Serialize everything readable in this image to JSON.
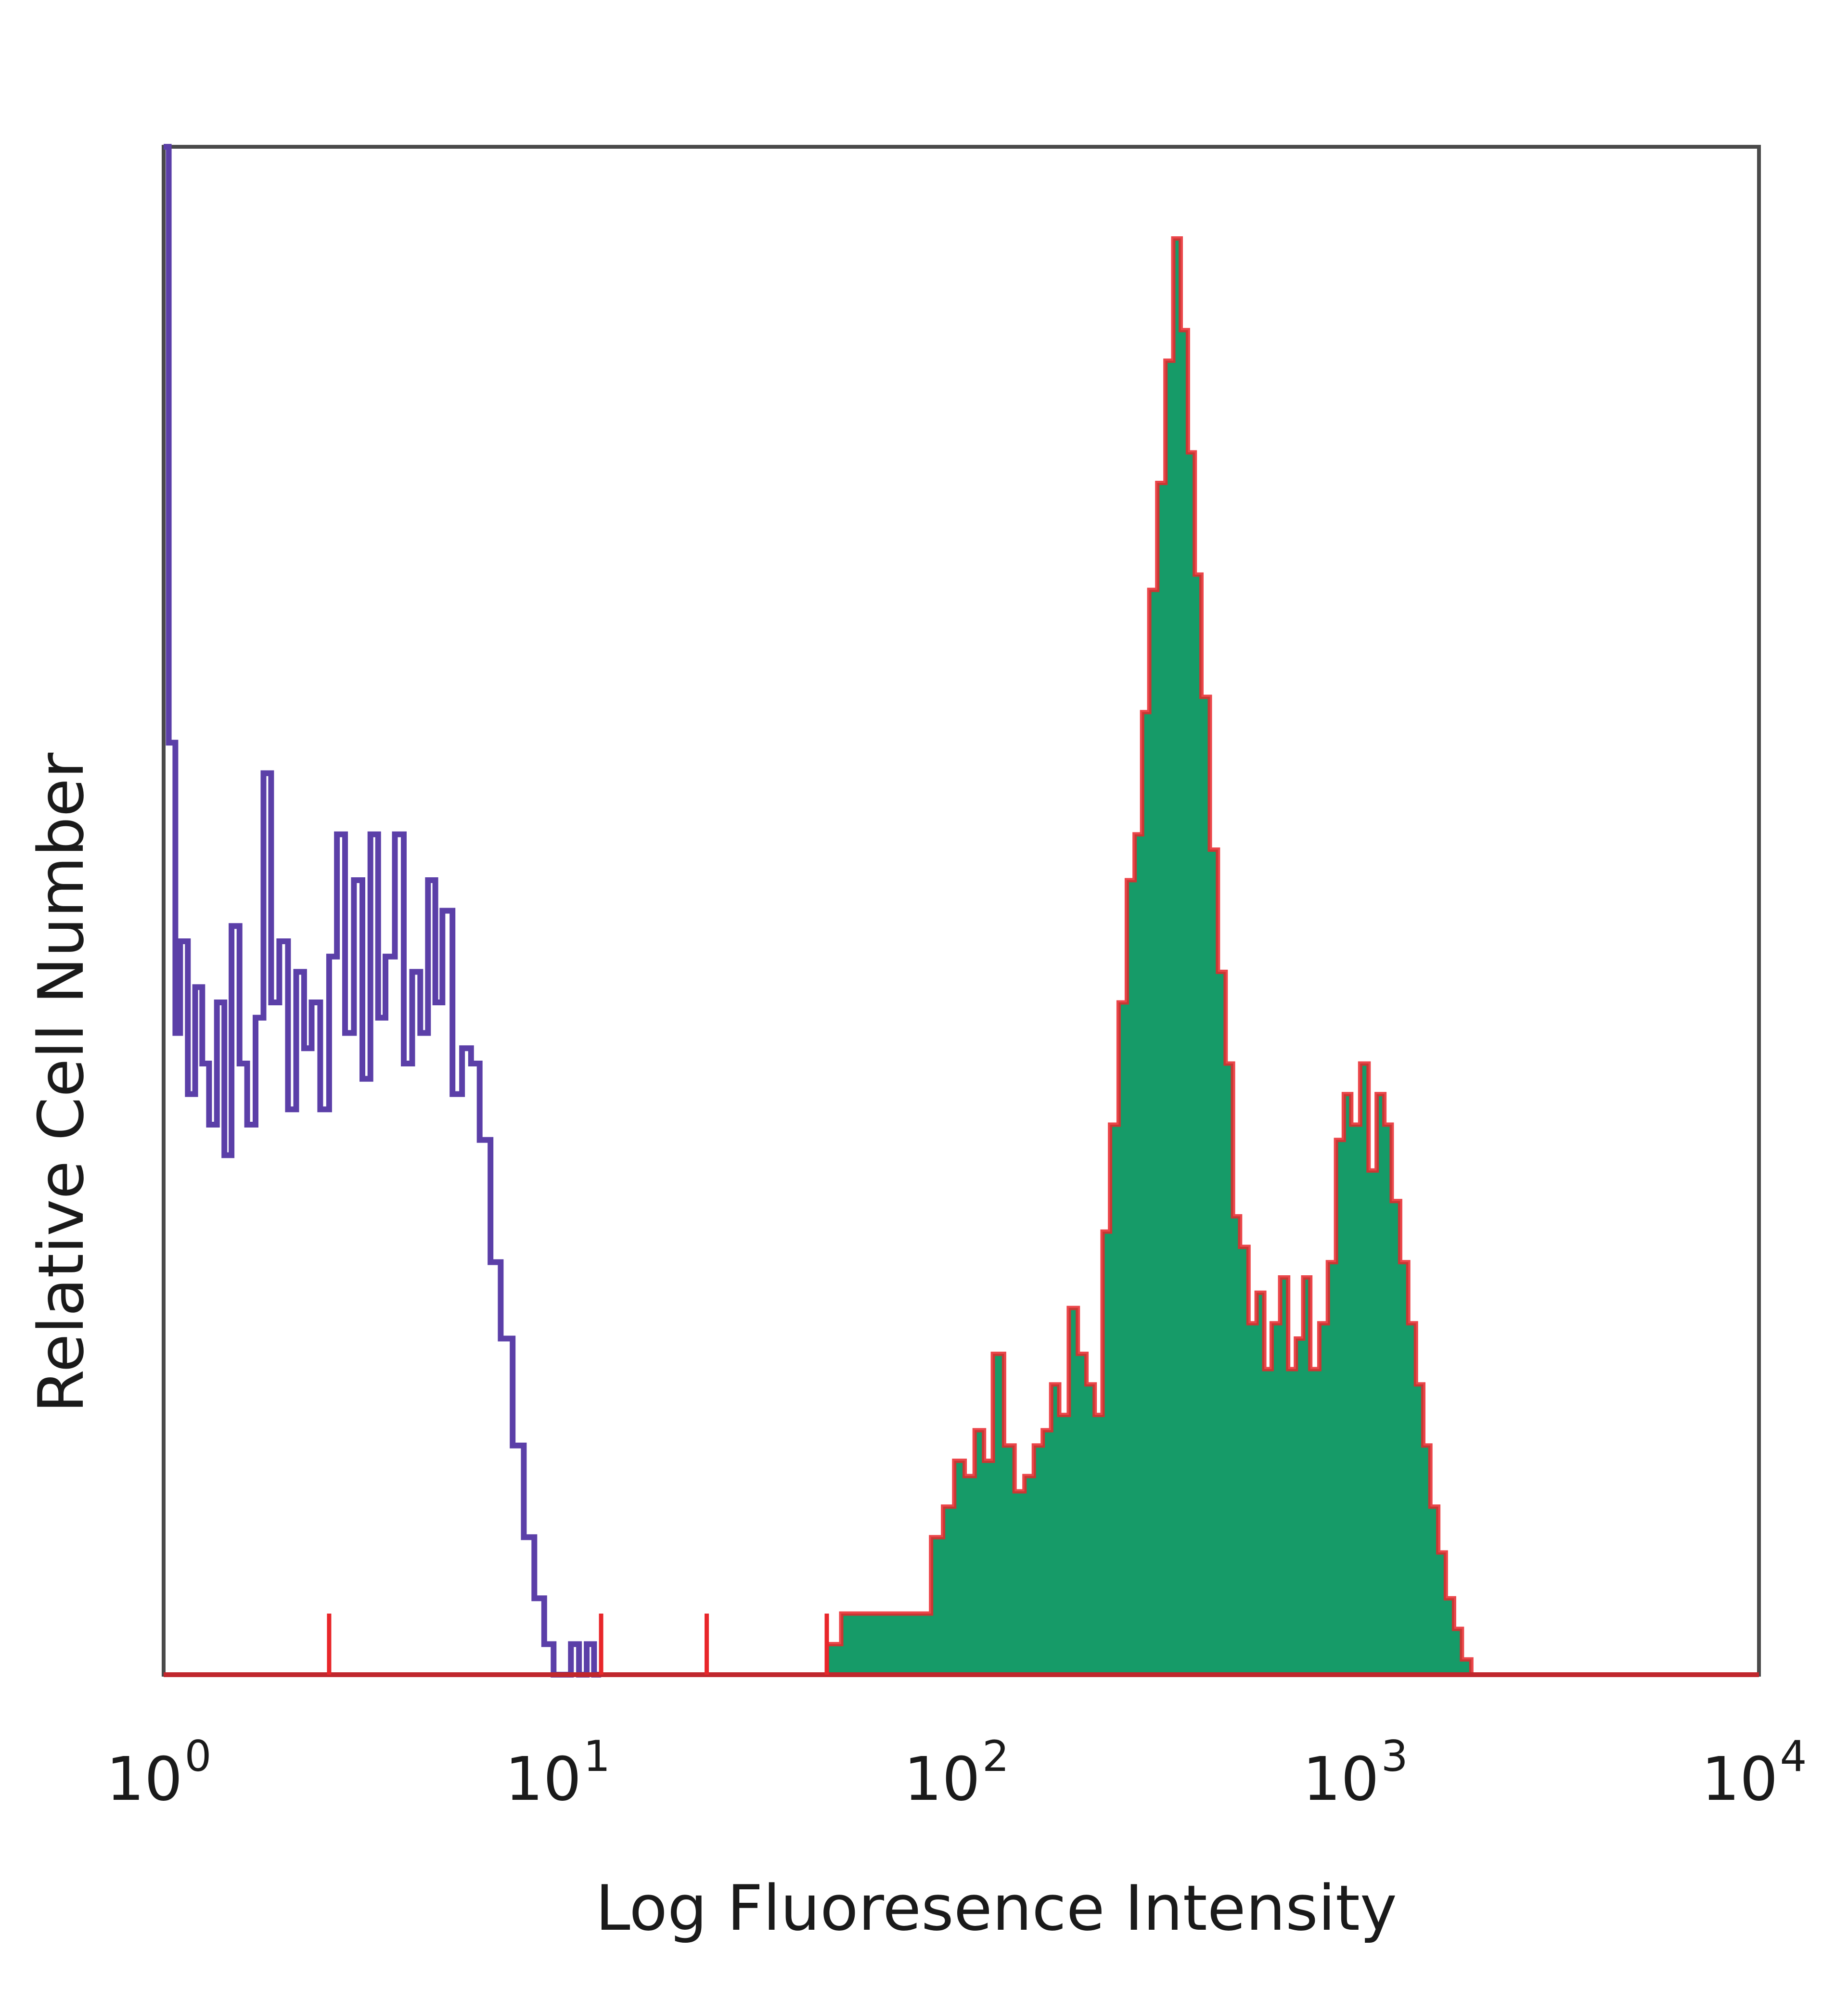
{
  "chart_data": {
    "type": "area",
    "title": "",
    "xlabel": "Log Fluoresence Intensity",
    "ylabel": "Relative Cell Number",
    "xscale": "log",
    "xlim": [
      1,
      10000
    ],
    "ylim": [
      0,
      100
    ],
    "xticks": [
      {
        "base": "10",
        "exp": "0",
        "value": 1
      },
      {
        "base": "10",
        "exp": "1",
        "value": 10
      },
      {
        "base": "10",
        "exp": "2",
        "value": 100
      },
      {
        "base": "10",
        "exp": "3",
        "value": 1000
      },
      {
        "base": "10",
        "exp": "4",
        "value": 10000
      }
    ],
    "grid": false,
    "legend": "none",
    "colors": {
      "frame": "#4a4a4a",
      "control_line": "#5b3fa8",
      "stained_fill": "#169b68",
      "stained_outline": "#e8262a",
      "baseline": "#c0272d"
    },
    "series": [
      {
        "style": "outline",
        "color": "#5b3fa8",
        "x": [
          1.0,
          1.03,
          1.07,
          1.1,
          1.15,
          1.2,
          1.25,
          1.3,
          1.36,
          1.42,
          1.48,
          1.55,
          1.62,
          1.7,
          1.78,
          1.86,
          1.95,
          2.05,
          2.15,
          2.25,
          2.35,
          2.47,
          2.6,
          2.72,
          2.85,
          3.0,
          3.15,
          3.3,
          3.45,
          3.6,
          3.8,
          4.0,
          4.2,
          4.4,
          4.6,
          4.8,
          5.0,
          5.3,
          5.6,
          5.9,
          6.2,
          6.6,
          7.0,
          7.5,
          8.0,
          8.5,
          9.0,
          9.5,
          10.0,
          10.5,
          11.0,
          11.5,
          12.0,
          12.5
        ],
        "values": [
          100,
          61,
          42,
          48,
          38,
          45,
          40,
          36,
          44,
          34,
          49,
          40,
          36,
          43,
          59,
          44,
          48,
          37,
          46,
          41,
          44,
          37,
          47,
          55,
          42,
          52,
          39,
          55,
          43,
          47,
          55,
          40,
          46,
          42,
          52,
          44,
          50,
          38,
          41,
          40,
          35,
          27,
          22,
          15,
          9,
          5,
          2,
          0,
          0,
          2,
          0,
          2,
          0,
          0
        ]
      },
      {
        "style": "filled",
        "color": "#169b68",
        "x": [
          46,
          50,
          55,
          60,
          66,
          72,
          78,
          84,
          90,
          96,
          102,
          108,
          114,
          120,
          128,
          136,
          144,
          152,
          160,
          168,
          176,
          186,
          196,
          206,
          216,
          226,
          236,
          248,
          260,
          272,
          284,
          296,
          310,
          325,
          340,
          355,
          370,
          385,
          400,
          420,
          440,
          460,
          480,
          500,
          525,
          550,
          575,
          600,
          630,
          660,
          690,
          720,
          750,
          790,
          830,
          870,
          910,
          950,
          1000,
          1050,
          1100,
          1150,
          1200,
          1260,
          1320,
          1380,
          1440,
          1500,
          1570,
          1640,
          1720,
          1800,
          1900,
          2000,
          2150,
          2300,
          2450,
          2600,
          2800,
          2950
        ],
        "values": [
          2,
          4,
          4,
          4,
          4,
          4,
          4,
          9,
          11,
          14,
          13,
          16,
          14,
          21,
          15,
          12,
          13,
          15,
          16,
          19,
          17,
          24,
          21,
          19,
          17,
          29,
          36,
          44,
          52,
          55,
          63,
          71,
          78,
          86,
          94,
          88,
          80,
          72,
          64,
          54,
          46,
          40,
          30,
          28,
          23,
          25,
          20,
          23,
          26,
          20,
          22,
          26,
          20,
          23,
          27,
          35,
          38,
          36,
          40,
          33,
          38,
          36,
          31,
          27,
          23,
          19,
          15,
          11,
          8,
          5,
          3,
          1,
          0,
          0,
          0,
          0,
          0,
          0,
          0,
          0
        ]
      }
    ]
  }
}
